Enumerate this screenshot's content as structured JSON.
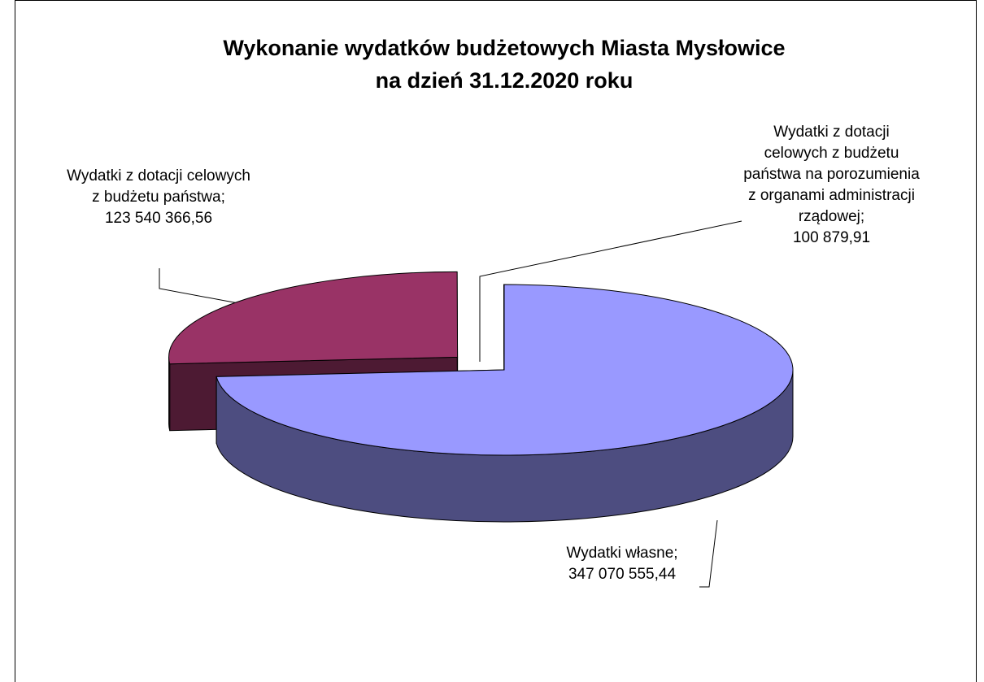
{
  "chart_data": {
    "type": "pie",
    "title": [
      "Wykonanie wydatków budżetowych Miasta Mysłowice",
      "na dzień 31.12.2020 roku"
    ],
    "categories": [
      "Wydatki własne;",
      "Wydatki z dotacji celowych z budżetu państwa;",
      "Wydatki z dotacji celowych z budżetu państwa na porozumienia z organami administracji rządowej;"
    ],
    "values": [
      347070555.44,
      123540366.56,
      100879.91
    ],
    "value_labels": [
      "347 070 555,44",
      "123 540 366,56",
      "100 879,91"
    ],
    "colors": [
      "#9999ff",
      "#993366",
      "#ffffcc"
    ],
    "side_colors": [
      "#4d4d80",
      "#4d1a33",
      "#80805f"
    ]
  }
}
